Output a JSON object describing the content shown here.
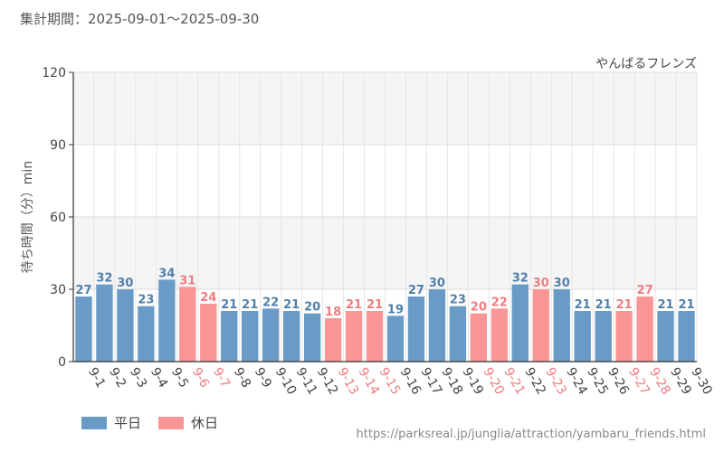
{
  "header": {
    "period": "集計期間：2025-09-01～2025-09-30"
  },
  "source_url": "https://parksreal.jp/junglia/attraction/yambaru_friends.html",
  "colors": {
    "weekday": "#6a9bc6",
    "holiday": "#fa9596",
    "weekday_text": "#4f7fab",
    "holiday_text": "#f07c7e"
  },
  "chart_data": {
    "type": "bar",
    "title": "やんばるフレンズ",
    "xlabel": "",
    "ylabel": "待ち時間（分）min",
    "ylim": [
      0,
      120
    ],
    "yticks": [
      0,
      30,
      60,
      90,
      120
    ],
    "categories": [
      "9-1",
      "9-2",
      "9-3",
      "9-4",
      "9-5",
      "9-6",
      "9-7",
      "9-8",
      "9-9",
      "9-10",
      "9-11",
      "9-12",
      "9-13",
      "9-14",
      "9-15",
      "9-16",
      "9-17",
      "9-18",
      "9-19",
      "9-20",
      "9-21",
      "9-22",
      "9-23",
      "9-24",
      "9-25",
      "9-26",
      "9-27",
      "9-28",
      "9-29",
      "9-30"
    ],
    "values": [
      27,
      32,
      30,
      23,
      34,
      31,
      24,
      21,
      21,
      22,
      21,
      20,
      18,
      21,
      21,
      19,
      27,
      30,
      23,
      20,
      22,
      32,
      30,
      30,
      21,
      21,
      21,
      27,
      21,
      21
    ],
    "day_type": [
      "weekday",
      "weekday",
      "weekday",
      "weekday",
      "weekday",
      "holiday",
      "holiday",
      "weekday",
      "weekday",
      "weekday",
      "weekday",
      "weekday",
      "holiday",
      "holiday",
      "holiday",
      "weekday",
      "weekday",
      "weekday",
      "weekday",
      "holiday",
      "holiday",
      "weekday",
      "holiday",
      "weekday",
      "weekday",
      "weekday",
      "holiday",
      "holiday",
      "weekday",
      "weekday"
    ],
    "legend": [
      {
        "key": "weekday",
        "label": "平日"
      },
      {
        "key": "holiday",
        "label": "休日"
      }
    ]
  }
}
